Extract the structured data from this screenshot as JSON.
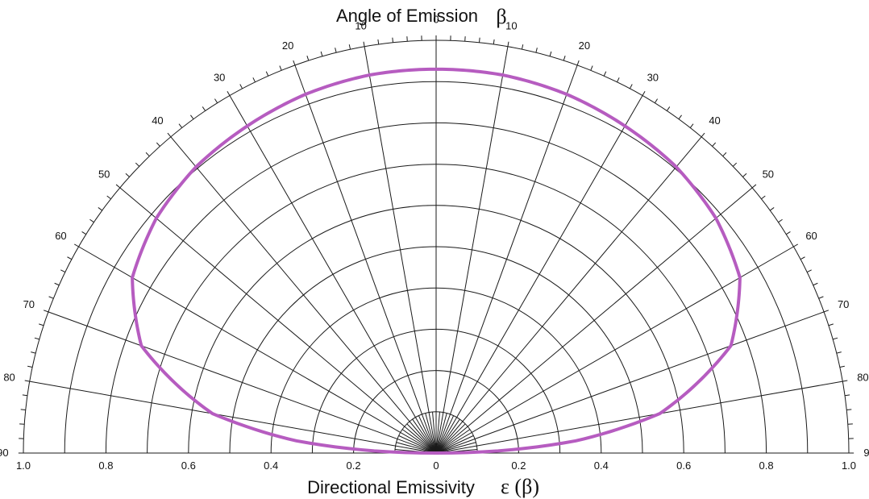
{
  "chart_data": {
    "type": "polar",
    "title": {
      "text": "Angle of Emission",
      "symbol": "β"
    },
    "xlabel": {
      "text": "Directional Emissivity",
      "symbol": "ε (β)"
    },
    "radial_range": [
      0,
      1.0
    ],
    "angle_range_deg": [
      -90,
      90
    ],
    "radial_tick_labels": [
      "1.0",
      "0.8",
      "0.6",
      "0.4",
      "0.2",
      "0",
      "0",
      "0.2",
      "0.4",
      "0.6",
      "0.8",
      "1.0"
    ],
    "angle_tick_labels": [
      "0",
      "10",
      "20",
      "30",
      "40",
      "50",
      "60",
      "70",
      "80",
      "90"
    ],
    "grid": true,
    "series": [
      {
        "angle_deg": [
          0,
          10,
          20,
          30,
          40,
          50,
          60,
          70,
          80,
          85,
          88,
          90
        ],
        "emissivity": [
          0.93,
          0.93,
          0.925,
          0.915,
          0.905,
          0.885,
          0.85,
          0.76,
          0.55,
          0.34,
          0.15,
          0.0
        ],
        "color": "#b65cc0"
      }
    ]
  }
}
